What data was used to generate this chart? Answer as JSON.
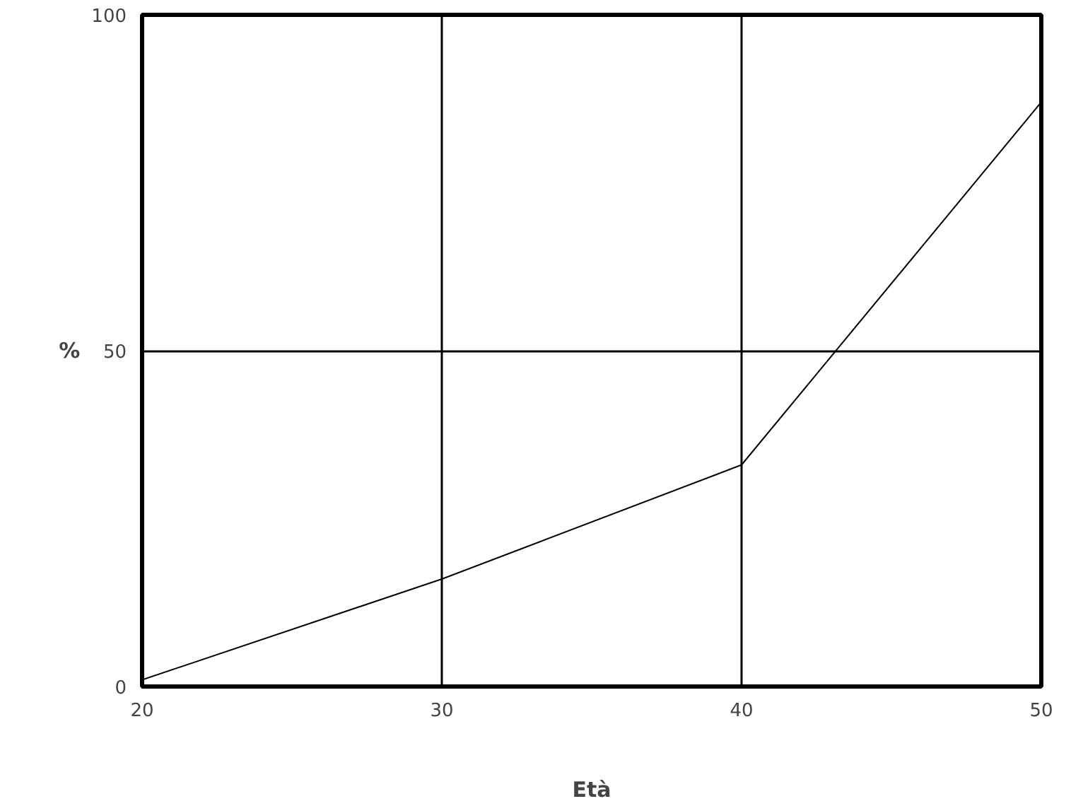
{
  "chart_data": {
    "type": "line",
    "xlabel": "Età",
    "ylabel": "%",
    "x": [
      20,
      30,
      40,
      50
    ],
    "values": [
      1,
      16,
      33,
      87
    ],
    "color": "#000000",
    "xlim": [
      20,
      50
    ],
    "ylim": [
      0,
      100
    ],
    "xticks": [
      20,
      30,
      40,
      50
    ],
    "yticks": [
      0,
      50,
      100
    ],
    "grid": true,
    "marker": "none",
    "line_style": "solid"
  }
}
